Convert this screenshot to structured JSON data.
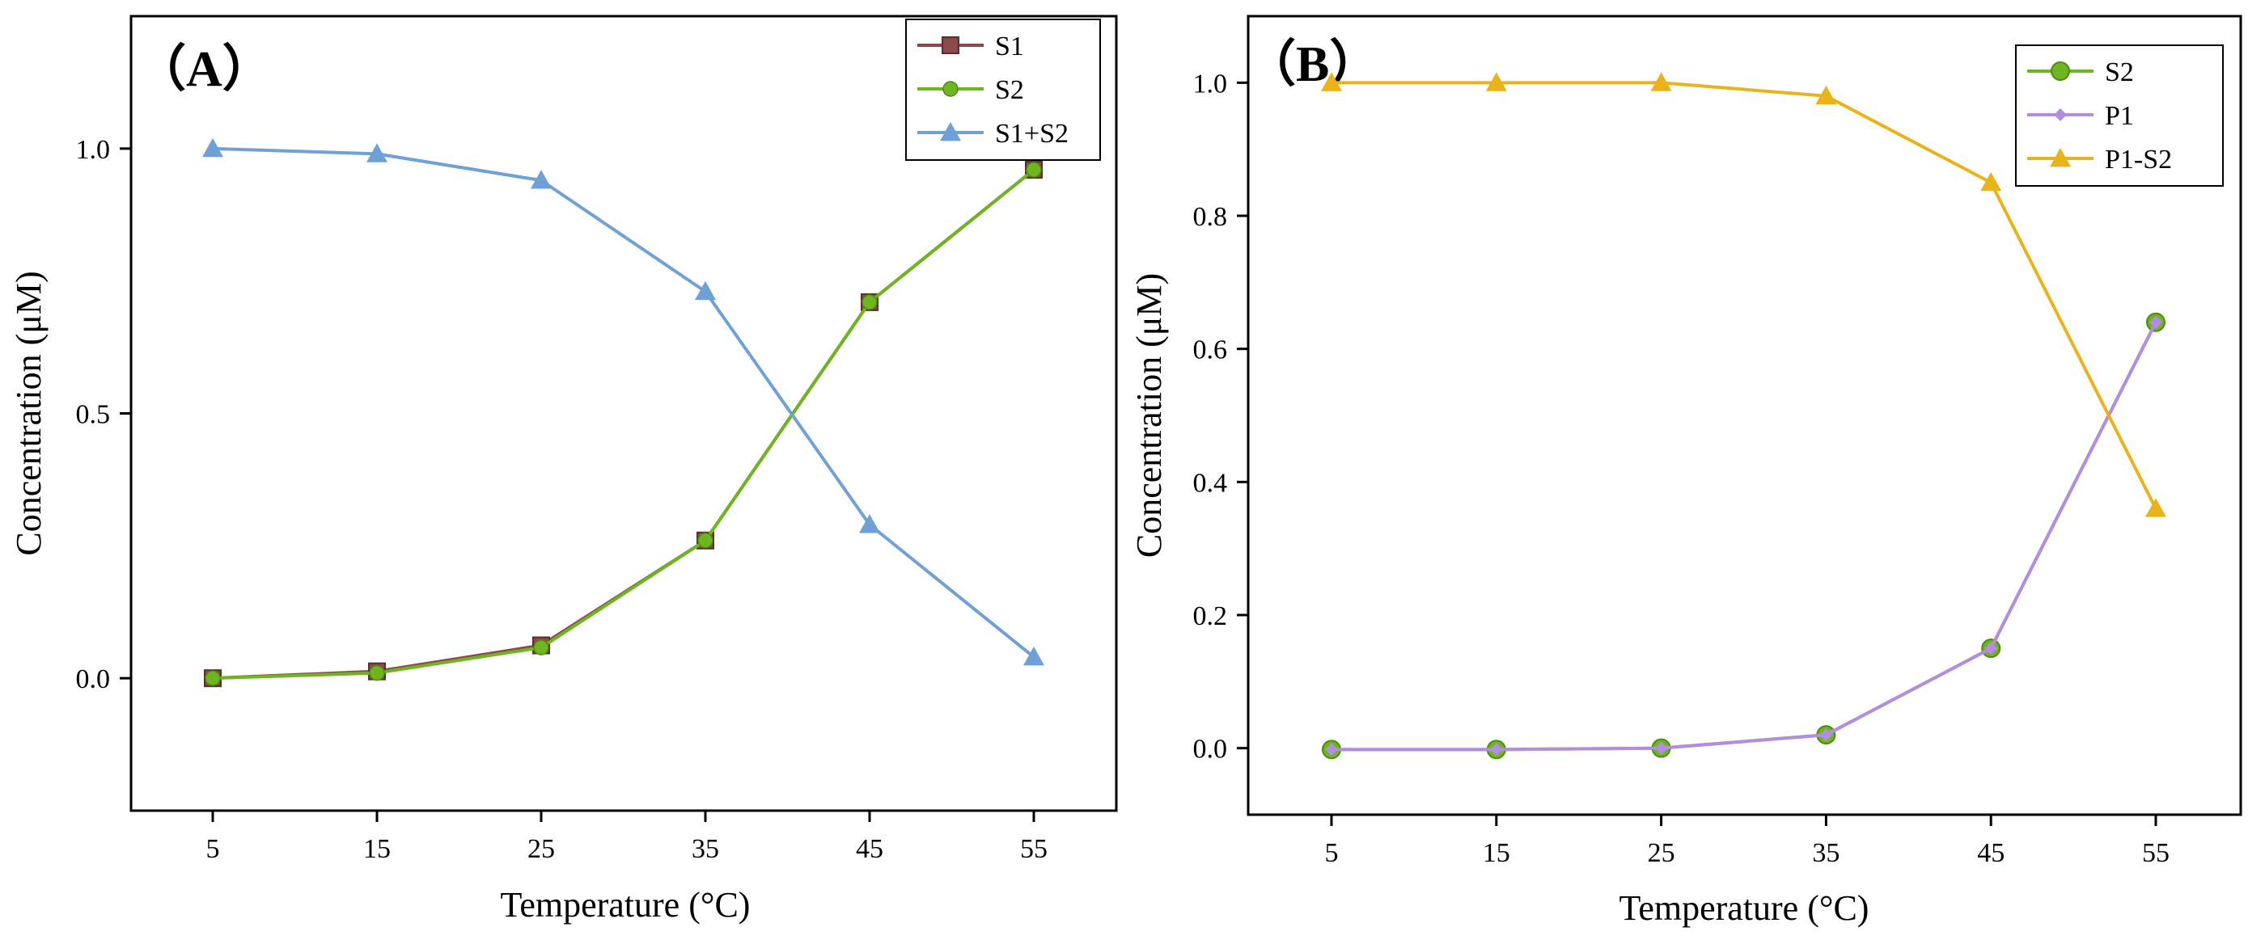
{
  "chart_data": [
    {
      "type": "line",
      "panel_label": "（A）",
      "xlabel": "Temperature (°C)",
      "ylabel": "Concentration (μM)",
      "categories": [
        "5",
        "15",
        "25",
        "35",
        "45",
        "55"
      ],
      "ylim": [
        -0.25,
        1.25
      ],
      "yticks": [
        "0.0",
        "0.5",
        "1.0"
      ],
      "ytick_values": [
        0.0,
        0.5,
        1.0
      ],
      "legend_position": "top-right",
      "series": [
        {
          "name": "S1",
          "color": "#8B4A4A",
          "marker": "square",
          "values": [
            0.0,
            0.013,
            0.062,
            0.26,
            0.71,
            0.96
          ]
        },
        {
          "name": "S2",
          "color": "#6FB51F",
          "marker": "circle",
          "values": [
            0.0,
            0.01,
            0.058,
            0.26,
            0.71,
            0.96
          ]
        },
        {
          "name": "S1+S2",
          "color": "#6FA0D6",
          "marker": "triangle",
          "values": [
            1.0,
            0.99,
            0.94,
            0.73,
            0.29,
            0.04
          ]
        }
      ]
    },
    {
      "type": "line",
      "panel_label": "（B）",
      "xlabel": "Temperature (°C)",
      "ylabel": "Concentration (μM)",
      "categories": [
        "5",
        "15",
        "25",
        "35",
        "45",
        "55"
      ],
      "ylim": [
        -0.1,
        1.1
      ],
      "yticks": [
        "0.0",
        "0.2",
        "0.4",
        "0.6",
        "0.8",
        "1.0"
      ],
      "ytick_values": [
        0.0,
        0.2,
        0.4,
        0.6,
        0.8,
        1.0
      ],
      "legend_position": "top-right",
      "series": [
        {
          "name": "S2",
          "color": "#6FB51F",
          "marker": "circle-large",
          "values": [
            -0.002,
            -0.002,
            0.0,
            0.02,
            0.15,
            0.64
          ]
        },
        {
          "name": "P1",
          "color": "#B48CE0",
          "marker": "diamond",
          "values": [
            -0.002,
            -0.002,
            0.0,
            0.02,
            0.15,
            0.64
          ]
        },
        {
          "name": "P1-S2",
          "color": "#E9B319",
          "marker": "triangle",
          "values": [
            1.0,
            1.0,
            1.0,
            0.98,
            0.85,
            0.36
          ]
        }
      ]
    }
  ]
}
